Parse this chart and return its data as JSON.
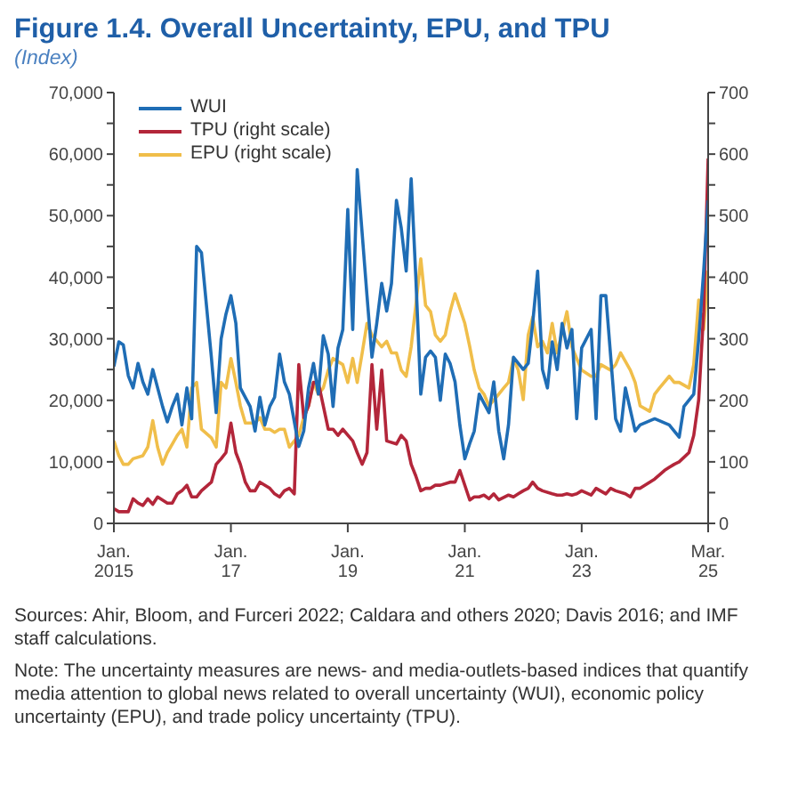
{
  "chart_data": {
    "type": "line",
    "title": "Figure 1.4.  Overall Uncertainty, EPU, and TPU",
    "subtitle": "(Index)",
    "xlim": [
      "2015-01",
      "2025-03"
    ],
    "xticks": [
      {
        "value": "2015-01",
        "label": "Jan.\n2015"
      },
      {
        "value": "2017-01",
        "label": "Jan.\n17"
      },
      {
        "value": "2019-01",
        "label": "Jan.\n19"
      },
      {
        "value": "2021-01",
        "label": "Jan.\n21"
      },
      {
        "value": "2023-01",
        "label": "Jan.\n23"
      },
      {
        "value": "2025-03",
        "label": "Mar.\n25"
      }
    ],
    "ylim": [
      0,
      70000
    ],
    "yticks": [
      0,
      {
        "value": 5000,
        "label": null
      },
      {
        "value": 10000,
        "label": "10,000"
      },
      {
        "value": 15000,
        "label": null
      },
      {
        "value": 20000,
        "label": "20,000"
      },
      {
        "value": 25000,
        "label": null
      },
      {
        "value": 30000,
        "label": "30,000"
      },
      {
        "value": 35000,
        "label": null
      },
      {
        "value": 40000,
        "label": "40,000"
      },
      {
        "value": 45000,
        "label": null
      },
      {
        "value": 50000,
        "label": "50,000"
      },
      {
        "value": 55000,
        "label": null
      },
      {
        "value": 60000,
        "label": "60,000"
      },
      {
        "value": 65000,
        "label": null
      },
      {
        "value": 70000,
        "label": "70,000"
      }
    ],
    "y2lim": [
      0,
      700
    ],
    "y2ticks": [
      0,
      {
        "value": 50,
        "label": null
      },
      100,
      {
        "value": 150,
        "label": null
      },
      200,
      {
        "value": 250,
        "label": null
      },
      300,
      {
        "value": 350,
        "label": null
      },
      400,
      {
        "value": 450,
        "label": null
      },
      500,
      {
        "value": 550,
        "label": null
      },
      600,
      {
        "value": 650,
        "label": null
      },
      700
    ],
    "legend": "top left",
    "series": [
      {
        "name": "WUI",
        "color": "#1f6db5",
        "x": [
          "2015-01",
          "2015-02",
          "2015-03",
          "2015-04",
          "2015-05",
          "2015-06",
          "2015-07",
          "2015-08",
          "2015-09",
          "2015-11",
          "2015-12",
          "2016-01",
          "2016-02",
          "2016-03",
          "2016-04",
          "2016-05",
          "2016-06",
          "2016-07",
          "2016-09",
          "2016-10",
          "2016-11",
          "2016-12",
          "2017-01",
          "2017-02",
          "2017-03",
          "2017-05",
          "2017-06",
          "2017-07",
          "2017-08",
          "2017-09",
          "2017-10",
          "2017-11",
          "2017-12",
          "2018-01",
          "2018-03",
          "2018-04",
          "2018-05",
          "2018-06",
          "2018-07",
          "2018-08",
          "2018-09",
          "2018-10",
          "2018-11",
          "2018-12",
          "2019-01",
          "2019-02",
          "2019-03",
          "2019-05",
          "2019-06",
          "2019-07",
          "2019-08",
          "2019-09",
          "2019-10",
          "2019-11",
          "2019-12",
          "2020-01",
          "2020-02",
          "2020-03",
          "2020-04",
          "2020-05",
          "2020-06",
          "2020-07",
          "2020-08",
          "2020-09",
          "2020-10",
          "2020-11",
          "2020-12",
          "2021-01",
          "2021-02",
          "2021-03",
          "2021-04",
          "2021-06",
          "2021-07",
          "2021-08",
          "2021-09",
          "2021-10",
          "2021-11",
          "2022-01",
          "2022-02",
          "2022-03",
          "2022-04",
          "2022-05",
          "2022-06",
          "2022-07",
          "2022-08",
          "2022-09",
          "2022-10",
          "2022-11",
          "2022-12",
          "2023-01",
          "2023-03",
          "2023-04",
          "2023-05",
          "2023-06",
          "2023-08",
          "2023-09",
          "2023-10",
          "2023-12",
          "2024-01",
          "2024-04",
          "2024-07",
          "2024-09",
          "2024-10",
          "2024-12",
          "2025-01",
          "2025-02",
          "2025-03"
        ],
        "values": [
          25500,
          29500,
          29000,
          24000,
          22000,
          26000,
          23000,
          21000,
          25000,
          19000,
          16500,
          19000,
          21000,
          16000,
          22000,
          17000,
          45000,
          44000,
          27000,
          18000,
          30000,
          34000,
          37000,
          32500,
          22000,
          19000,
          15000,
          20500,
          16000,
          19000,
          20500,
          27500,
          23000,
          21000,
          12500,
          15000,
          22000,
          26000,
          21000,
          30500,
          27500,
          19000,
          28500,
          31500,
          51000,
          31500,
          57500,
          37000,
          27000,
          32500,
          39000,
          34500,
          39000,
          52500,
          48000,
          41000,
          56000,
          40000,
          21000,
          27000,
          28000,
          27000,
          20000,
          27500,
          26000,
          23000,
          16000,
          10500,
          13000,
          15000,
          21000,
          18000,
          23000,
          15000,
          10500,
          16000,
          27000,
          25000,
          26000,
          32500,
          41000,
          25000,
          22000,
          29500,
          25000,
          32500,
          28500,
          31500,
          17000,
          28500,
          31500,
          17000,
          37000,
          37000,
          17000,
          15000,
          22000,
          15000,
          16000,
          17000,
          16000,
          14000,
          19000,
          21000,
          30000,
          41000,
          52500
        ]
      },
      {
        "name": "TPU (right scale)",
        "color": "#b3263a",
        "axis": "y2",
        "x": [
          "2015-01",
          "2015-02",
          "2015-04",
          "2015-05",
          "2015-06",
          "2015-07",
          "2015-08",
          "2015-09",
          "2015-10",
          "2015-12",
          "2016-01",
          "2016-02",
          "2016-03",
          "2016-04",
          "2016-05",
          "2016-06",
          "2016-07",
          "2016-09",
          "2016-10",
          "2016-11",
          "2016-12",
          "2017-01",
          "2017-02",
          "2017-03",
          "2017-04",
          "2017-05",
          "2017-06",
          "2017-07",
          "2017-09",
          "2017-10",
          "2017-11",
          "2017-12",
          "2018-01",
          "2018-02",
          "2018-03",
          "2018-04",
          "2018-05",
          "2018-06",
          "2018-07",
          "2018-08",
          "2018-09",
          "2018-10",
          "2018-11",
          "2018-12",
          "2019-02",
          "2019-03",
          "2019-04",
          "2019-05",
          "2019-06",
          "2019-07",
          "2019-08",
          "2019-09",
          "2019-11",
          "2019-12",
          "2020-01",
          "2020-02",
          "2020-03",
          "2020-04",
          "2020-05",
          "2020-06",
          "2020-07",
          "2020-08",
          "2020-10",
          "2020-11",
          "2020-12",
          "2021-02",
          "2021-03",
          "2021-04",
          "2021-05",
          "2021-06",
          "2021-07",
          "2021-08",
          "2021-10",
          "2021-11",
          "2021-12",
          "2022-01",
          "2022-02",
          "2022-03",
          "2022-04",
          "2022-05",
          "2022-07",
          "2022-08",
          "2022-09",
          "2022-10",
          "2022-11",
          "2022-12",
          "2023-01",
          "2023-03",
          "2023-04",
          "2023-06",
          "2023-07",
          "2023-08",
          "2023-10",
          "2023-11",
          "2023-12",
          "2024-01",
          "2024-03",
          "2024-04",
          "2024-06",
          "2024-07",
          "2024-08",
          "2024-09",
          "2024-11",
          "2024-12",
          "2025-01",
          "2025-02",
          "2025-03"
        ],
        "values": [
          24,
          19,
          19,
          40,
          33,
          29,
          40,
          31,
          43,
          33,
          33,
          48,
          53,
          62,
          43,
          43,
          53,
          67,
          96,
          105,
          115,
          163,
          115,
          96,
          67,
          53,
          53,
          67,
          57,
          48,
          43,
          53,
          57,
          48,
          258,
          172,
          191,
          229,
          229,
          191,
          153,
          153,
          143,
          153,
          134,
          115,
          96,
          115,
          258,
          153,
          249,
          134,
          129,
          143,
          134,
          96,
          77,
          53,
          57,
          57,
          62,
          62,
          67,
          67,
          86,
          38,
          43,
          43,
          46,
          40,
          48,
          38,
          46,
          43,
          48,
          53,
          57,
          67,
          57,
          53,
          48,
          46,
          46,
          48,
          46,
          48,
          53,
          46,
          57,
          48,
          57,
          53,
          48,
          43,
          57,
          57,
          67,
          72,
          86,
          91,
          96,
          100,
          115,
          143,
          201,
          344,
          593
        ]
      },
      {
        "name": "EPU (right scale)",
        "color": "#f0be4a",
        "axis": "y2",
        "x": [
          "2015-01",
          "2015-02",
          "2015-03",
          "2015-04",
          "2015-05",
          "2015-07",
          "2015-08",
          "2015-09",
          "2015-10",
          "2015-11",
          "2015-12",
          "2016-01",
          "2016-02",
          "2016-03",
          "2016-04",
          "2016-05",
          "2016-06",
          "2016-07",
          "2016-09",
          "2016-10",
          "2016-11",
          "2016-12",
          "2017-01",
          "2017-02",
          "2017-03",
          "2017-04",
          "2017-06",
          "2017-07",
          "2017-08",
          "2017-09",
          "2017-10",
          "2017-11",
          "2017-12",
          "2018-01",
          "2018-03",
          "2018-04",
          "2018-05",
          "2018-06",
          "2018-07",
          "2018-08",
          "2018-09",
          "2018-10",
          "2018-12",
          "2019-01",
          "2019-02",
          "2019-03",
          "2019-04",
          "2019-05",
          "2019-06",
          "2019-08",
          "2019-09",
          "2019-10",
          "2019-11",
          "2019-12",
          "2020-01",
          "2020-02",
          "2020-03",
          "2020-04",
          "2020-05",
          "2020-06",
          "2020-07",
          "2020-08",
          "2020-09",
          "2020-10",
          "2020-11",
          "2021-01",
          "2021-02",
          "2021-03",
          "2021-04",
          "2021-05",
          "2021-06",
          "2021-08",
          "2021-09",
          "2021-10",
          "2021-11",
          "2021-12",
          "2022-01",
          "2022-02",
          "2022-03",
          "2022-04",
          "2022-05",
          "2022-06",
          "2022-07",
          "2022-08",
          "2022-10",
          "2022-11",
          "2022-12",
          "2023-01",
          "2023-03",
          "2023-04",
          "2023-05",
          "2023-07",
          "2023-08",
          "2023-09",
          "2023-11",
          "2023-12",
          "2024-01",
          "2024-03",
          "2024-04",
          "2024-05",
          "2024-07",
          "2024-08",
          "2024-09",
          "2024-11",
          "2024-12",
          "2025-01",
          "2025-02",
          "2025-03"
        ],
        "values": [
          134,
          110,
          96,
          96,
          105,
          110,
          124,
          167,
          124,
          96,
          115,
          129,
          143,
          153,
          124,
          220,
          229,
          153,
          139,
          124,
          229,
          220,
          268,
          229,
          191,
          163,
          163,
          172,
          153,
          153,
          148,
          153,
          153,
          124,
          143,
          172,
          191,
          229,
          210,
          220,
          249,
          268,
          258,
          229,
          268,
          229,
          277,
          325,
          306,
          287,
          296,
          277,
          277,
          249,
          239,
          287,
          354,
          430,
          354,
          344,
          306,
          296,
          306,
          344,
          373,
          325,
          287,
          249,
          220,
          210,
          191,
          210,
          220,
          229,
          268,
          249,
          201,
          306,
          335,
          287,
          296,
          277,
          325,
          277,
          344,
          287,
          268,
          249,
          239,
          239,
          258,
          249,
          258,
          277,
          249,
          229,
          191,
          182,
          210,
          220,
          239,
          229,
          229,
          220,
          258,
          363,
          315,
          411
        ]
      }
    ],
    "annotations": [
      "Sources: Ahir, Bloom, and Furceri 2022; Caldara and others 2020; Davis 2016; and IMF staff calculations.",
      "Note: The uncertainty measures are news- and media-outlets-based indices that quantify media attention to global news related to overall uncertainty (WUI), economic policy uncertainty (EPU), and trade policy uncertainty (TPU)."
    ]
  }
}
